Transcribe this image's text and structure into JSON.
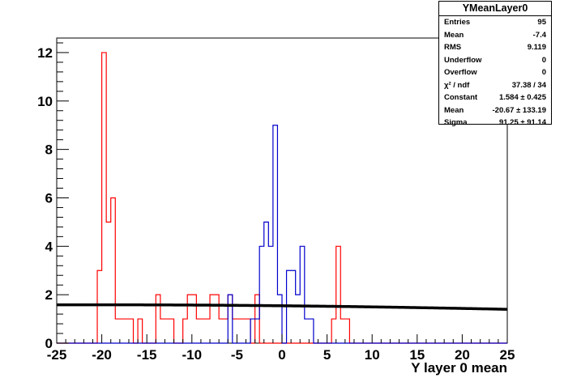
{
  "chart_data": {
    "type": "histogram",
    "xlabel": "Y layer 0 mean",
    "ylabel": "",
    "xlim": [
      -25,
      25
    ],
    "ylim": [
      0,
      12.6
    ],
    "x_ticks": [
      -25,
      -20,
      -15,
      -10,
      -5,
      0,
      5,
      10,
      15,
      20,
      25
    ],
    "y_ticks": [
      0,
      2,
      4,
      6,
      8,
      10,
      12
    ],
    "bin_width": 0.5,
    "series": [
      {
        "color": "#ff0000",
        "bins": [
          {
            "x": -20.5,
            "y": 3
          },
          {
            "x": -20.0,
            "y": 12
          },
          {
            "x": -19.5,
            "y": 5
          },
          {
            "x": -19.0,
            "y": 6
          },
          {
            "x": -18.5,
            "y": 1
          },
          {
            "x": -18.0,
            "y": 1
          },
          {
            "x": -17.5,
            "y": 1
          },
          {
            "x": -17.0,
            "y": 1
          },
          {
            "x": -16.0,
            "y": 1
          },
          {
            "x": -14.0,
            "y": 2
          },
          {
            "x": -13.5,
            "y": 1
          },
          {
            "x": -13.0,
            "y": 1
          },
          {
            "x": -12.5,
            "y": 1
          },
          {
            "x": -11.0,
            "y": 1
          },
          {
            "x": -10.5,
            "y": 2
          },
          {
            "x": -10.0,
            "y": 2
          },
          {
            "x": -9.5,
            "y": 1
          },
          {
            "x": -9.0,
            "y": 1
          },
          {
            "x": -8.5,
            "y": 1
          },
          {
            "x": -8.0,
            "y": 2
          },
          {
            "x": -7.5,
            "y": 2
          },
          {
            "x": -7.0,
            "y": 1
          },
          {
            "x": -6.5,
            "y": 1
          },
          {
            "x": -6.0,
            "y": 2
          },
          {
            "x": -5.5,
            "y": 1
          },
          {
            "x": -5.0,
            "y": 1
          },
          {
            "x": -4.5,
            "y": 1
          },
          {
            "x": -4.0,
            "y": 1
          },
          {
            "x": -3.0,
            "y": 2
          },
          {
            "x": 5.5,
            "y": 1
          },
          {
            "x": 6.0,
            "y": 4
          },
          {
            "x": 6.5,
            "y": 1
          },
          {
            "x": 7.0,
            "y": 1
          }
        ]
      },
      {
        "color": "#0000cc",
        "bins": [
          {
            "x": -6.0,
            "y": 2
          },
          {
            "x": -3.5,
            "y": 1
          },
          {
            "x": -3.0,
            "y": 1
          },
          {
            "x": -2.5,
            "y": 4
          },
          {
            "x": -2.0,
            "y": 5
          },
          {
            "x": -1.5,
            "y": 4
          },
          {
            "x": -1.0,
            "y": 9
          },
          {
            "x": -0.5,
            "y": 2
          },
          {
            "x": 0.5,
            "y": 3
          },
          {
            "x": 1.0,
            "y": 3
          },
          {
            "x": 1.5,
            "y": 2
          },
          {
            "x": 2.0,
            "y": 4
          },
          {
            "x": 2.5,
            "y": 1
          },
          {
            "x": 3.0,
            "y": 1
          }
        ]
      }
    ],
    "fit": {
      "type": "gaus",
      "constant": 1.584,
      "mean": -20.67,
      "sigma": 91.25,
      "color": "#000000"
    }
  },
  "stats": {
    "title": "YMeanLayer0",
    "rows": [
      {
        "label": "Entries",
        "value": "95"
      },
      {
        "label": "Mean",
        "value": "-7.4"
      },
      {
        "label": "RMS",
        "value": "9.119"
      },
      {
        "label": "Underflow",
        "value": "0"
      },
      {
        "label": "Overflow",
        "value": "0"
      },
      {
        "label": "χ² / ndf",
        "value": "37.38 / 34"
      },
      {
        "label": "Constant",
        "value": "1.584 ± 0.425"
      },
      {
        "label": "Mean",
        "value": "-20.67 ± 133.19"
      },
      {
        "label": "Sigma",
        "value": "91.25 ± 91.14"
      }
    ]
  }
}
